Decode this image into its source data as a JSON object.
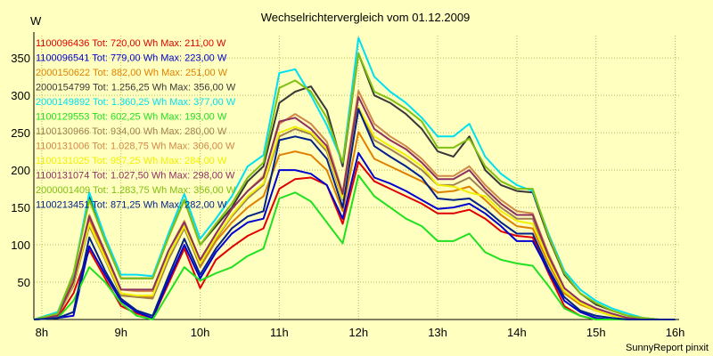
{
  "chart_data": {
    "type": "line",
    "title": "Wechselrichtervergleich vom 01.12.2009",
    "ylabel": "W",
    "xlabel": "",
    "footer": "SunnyReport pinxit",
    "x_ticks": [
      "8h",
      "9h",
      "10h",
      "11h",
      "12h",
      "13h",
      "14h",
      "15h",
      "16h"
    ],
    "y_ticks": [
      "50",
      "100",
      "150",
      "200",
      "250",
      "300",
      "350"
    ],
    "xlim": [
      7.9,
      16.05
    ],
    "ylim": [
      0,
      380
    ],
    "grid": true,
    "legend_position": "top-left",
    "x": [
      7.9,
      8.2,
      8.4,
      8.6,
      8.8,
      9.0,
      9.2,
      9.4,
      9.6,
      9.8,
      10.0,
      10.2,
      10.4,
      10.6,
      10.8,
      11.0,
      11.2,
      11.4,
      11.6,
      11.8,
      12.0,
      12.2,
      12.4,
      12.6,
      12.8,
      13.0,
      13.2,
      13.4,
      13.6,
      13.8,
      14.0,
      14.2,
      14.4,
      14.6,
      14.8,
      15.0,
      15.2,
      15.4,
      15.6,
      15.8,
      16.0
    ],
    "series": [
      {
        "name": "1100096436 Tot: 720,00 Wh Max: 211,00 W",
        "color": "#e00000",
        "values": [
          0,
          2,
          35,
          93,
          55,
          18,
          8,
          2,
          48,
          95,
          42,
          80,
          97,
          112,
          122,
          175,
          188,
          190,
          180,
          128,
          211,
          185,
          175,
          165,
          155,
          142,
          142,
          147,
          135,
          118,
          112,
          110,
          62,
          18,
          5,
          0,
          0,
          0,
          0,
          0,
          0
        ]
      },
      {
        "name": "1100096541 Tot: 779,00 Wh Max: 223,00 W",
        "color": "#0000d0",
        "values": [
          0,
          2,
          5,
          98,
          60,
          25,
          10,
          2,
          52,
          100,
          55,
          90,
          115,
          130,
          135,
          200,
          200,
          195,
          180,
          135,
          223,
          190,
          182,
          172,
          160,
          148,
          150,
          155,
          142,
          125,
          105,
          105,
          65,
          25,
          10,
          2,
          0,
          0,
          0,
          0,
          0
        ]
      },
      {
        "name": "2000150622 Tot: 882,00 Wh Max: 251,00 W",
        "color": "#e08000",
        "values": [
          0,
          5,
          55,
          135,
          85,
          35,
          30,
          30,
          85,
          125,
          70,
          105,
          130,
          150,
          165,
          220,
          225,
          220,
          200,
          145,
          251,
          215,
          205,
          195,
          185,
          170,
          172,
          178,
          160,
          140,
          125,
          122,
          75,
          35,
          20,
          12,
          5,
          2,
          0,
          0,
          0
        ]
      },
      {
        "name": "2000154799 Tot: 1.256,25 Wh Max: 356,00 W",
        "color": "#383838",
        "values": [
          0,
          8,
          60,
          165,
          105,
          55,
          55,
          55,
          110,
          160,
          100,
          125,
          150,
          185,
          205,
          290,
          305,
          312,
          280,
          205,
          356,
          300,
          290,
          275,
          255,
          225,
          218,
          245,
          200,
          180,
          172,
          170,
          110,
          60,
          35,
          20,
          12,
          5,
          2,
          0,
          0
        ]
      },
      {
        "name": "2000149892 Tot: 1.360,25 Wh Max: 377,00 W",
        "color": "#00e0f0",
        "values": [
          0,
          10,
          60,
          170,
          110,
          60,
          60,
          58,
          115,
          168,
          108,
          135,
          165,
          205,
          220,
          330,
          335,
          300,
          260,
          210,
          377,
          325,
          305,
          290,
          270,
          245,
          245,
          262,
          218,
          195,
          180,
          172,
          115,
          65,
          40,
          25,
          15,
          8,
          2,
          0,
          0
        ]
      },
      {
        "name": "1100129553 Tot: 602,25 Wh Max: 193,00 W",
        "color": "#20e020",
        "values": [
          0,
          2,
          25,
          70,
          50,
          22,
          5,
          0,
          35,
          70,
          52,
          62,
          70,
          85,
          95,
          162,
          170,
          158,
          130,
          102,
          193,
          165,
          150,
          135,
          125,
          105,
          105,
          115,
          90,
          80,
          75,
          72,
          45,
          15,
          5,
          0,
          0,
          0,
          0,
          0,
          0
        ]
      },
      {
        "name": "1100130966 Tot: 934,00 Wh Max: 280,00 W",
        "color": "#a08050",
        "values": [
          0,
          5,
          45,
          125,
          80,
          32,
          30,
          28,
          80,
          122,
          72,
          108,
          138,
          162,
          180,
          245,
          255,
          248,
          225,
          160,
          280,
          240,
          228,
          215,
          200,
          180,
          180,
          190,
          170,
          150,
          135,
          135,
          82,
          38,
          22,
          12,
          5,
          2,
          0,
          0,
          0
        ]
      },
      {
        "name": "1100131006 Tot: 1.028,75 Wh Max: 306,00 W",
        "color": "#d08848",
        "values": [
          0,
          5,
          50,
          140,
          90,
          40,
          38,
          38,
          92,
          132,
          78,
          115,
          148,
          172,
          192,
          262,
          275,
          262,
          238,
          170,
          306,
          262,
          245,
          232,
          215,
          192,
          192,
          205,
          180,
          160,
          145,
          142,
          88,
          42,
          25,
          15,
          8,
          2,
          0,
          0,
          0
        ]
      },
      {
        "name": "1100131025 Tot: 957,25 Wh Max: 284,00 W",
        "color": "#f0f000",
        "values": [
          0,
          5,
          48,
          128,
          82,
          35,
          32,
          32,
          85,
          125,
          75,
          110,
          140,
          165,
          182,
          250,
          258,
          250,
          228,
          162,
          284,
          245,
          232,
          220,
          205,
          180,
          178,
          170,
          165,
          145,
          132,
          128,
          80,
          38,
          22,
          12,
          5,
          2,
          0,
          0,
          0
        ]
      },
      {
        "name": "1100131074 Tot: 1.027,50 Wh Max: 298,00 W",
        "color": "#8c3060",
        "values": [
          0,
          5,
          50,
          138,
          90,
          40,
          40,
          40,
          92,
          130,
          80,
          115,
          148,
          172,
          190,
          265,
          270,
          255,
          232,
          168,
          298,
          255,
          240,
          228,
          210,
          188,
          188,
          200,
          175,
          155,
          140,
          140,
          85,
          42,
          25,
          15,
          8,
          2,
          0,
          0,
          0
        ]
      },
      {
        "name": "2000001409 Tot: 1.283,75 Wh Max: 356,00 W",
        "color": "#80c010",
        "values": [
          0,
          8,
          62,
          160,
          105,
          55,
          55,
          55,
          110,
          160,
          100,
          128,
          155,
          190,
          210,
          310,
          320,
          305,
          270,
          210,
          356,
          305,
          295,
          282,
          265,
          230,
          230,
          242,
          205,
          185,
          175,
          175,
          112,
          62,
          35,
          22,
          12,
          5,
          2,
          0,
          0
        ]
      },
      {
        "name": "1100213451 Tot: 871,25 Wh Max: 282,00 W",
        "color": "#00208c",
        "values": [
          0,
          2,
          10,
          110,
          65,
          28,
          12,
          5,
          58,
          108,
          60,
          95,
          122,
          138,
          145,
          240,
          245,
          240,
          215,
          150,
          282,
          232,
          218,
          205,
          190,
          162,
          160,
          162,
          148,
          130,
          115,
          115,
          68,
          30,
          12,
          5,
          2,
          0,
          0,
          0,
          0
        ]
      }
    ]
  }
}
